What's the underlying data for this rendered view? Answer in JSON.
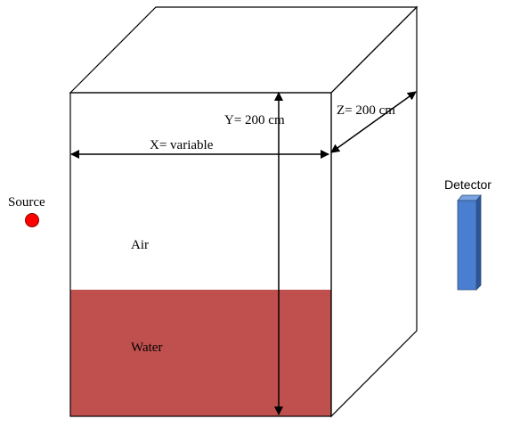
{
  "labels": {
    "source": "Source",
    "detector": "Detector",
    "air": "Air",
    "water": "Water",
    "x_dim": "X= variable",
    "y_dim": "Y= 200 cm",
    "z_dim": "Z= 200 cm"
  },
  "colors": {
    "water": "#c0504d",
    "source": "#ff0000",
    "source_outline": "#8b0000",
    "detector_front": "#4a7ed1",
    "detector_side": "#2e5596",
    "detector_top": "#7aa3e0",
    "outline": "#000000"
  }
}
